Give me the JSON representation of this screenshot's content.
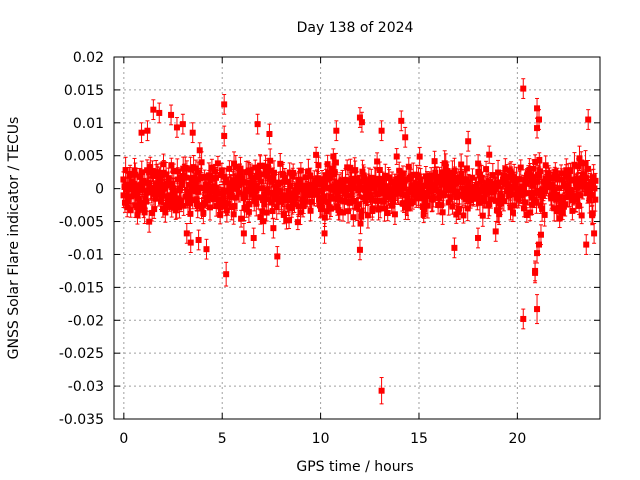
{
  "chart_data": {
    "type": "scatter",
    "title": "Day 138 of 2024",
    "xlabel": "GPS time / hours",
    "ylabel": "GNSS Solar Flare indicator / TECUs",
    "xlim": [
      -0.5,
      24.2
    ],
    "ylim": [
      -0.035,
      0.02
    ],
    "x_ticks": [
      0,
      5,
      10,
      15,
      20
    ],
    "x_tick_labels": [
      "0",
      "5",
      "10",
      "15",
      "20"
    ],
    "y_ticks": [
      0.02,
      0.015,
      0.01,
      0.005,
      0,
      -0.005,
      -0.01,
      -0.015,
      -0.02,
      -0.025,
      -0.03,
      -0.035
    ],
    "y_tick_labels": [
      "0.02",
      "0.015",
      "0.01",
      "0.005",
      "0",
      "-0.005",
      "-0.01",
      "-0.015",
      "-0.02",
      "-0.025",
      "-0.03",
      "-0.035"
    ],
    "grid": true,
    "marker": "square",
    "color": "#ff0000",
    "bulk_band": {
      "x_range": [
        0,
        24
      ],
      "step_hours": 0.05,
      "typical_abs_max": 0.006,
      "typical_error": 0.0015,
      "description": "dense cloud of points between about -0.006 and 0.006 TECU with error bars"
    },
    "notable_points": [
      {
        "x": 1.5,
        "y": 0.012,
        "err": 0.0015
      },
      {
        "x": 1.8,
        "y": 0.0115,
        "err": 0.0015
      },
      {
        "x": 0.9,
        "y": 0.0085,
        "err": 0.0015
      },
      {
        "x": 1.2,
        "y": 0.0088,
        "err": 0.0015
      },
      {
        "x": 2.4,
        "y": 0.0112,
        "err": 0.0015
      },
      {
        "x": 2.7,
        "y": 0.0093,
        "err": 0.0015
      },
      {
        "x": 3.0,
        "y": 0.0098,
        "err": 0.0015
      },
      {
        "x": 3.5,
        "y": 0.0085,
        "err": 0.0015
      },
      {
        "x": 5.1,
        "y": 0.0128,
        "err": 0.0015
      },
      {
        "x": 5.1,
        "y": 0.008,
        "err": 0.0015
      },
      {
        "x": 6.8,
        "y": 0.0098,
        "err": 0.0015
      },
      {
        "x": 7.4,
        "y": 0.0083,
        "err": 0.0015
      },
      {
        "x": 10.8,
        "y": 0.0088,
        "err": 0.0015
      },
      {
        "x": 12.0,
        "y": 0.0108,
        "err": 0.0015
      },
      {
        "x": 12.1,
        "y": 0.0101,
        "err": 0.0015
      },
      {
        "x": 13.1,
        "y": 0.0088,
        "err": 0.0015
      },
      {
        "x": 14.1,
        "y": 0.0103,
        "err": 0.0015
      },
      {
        "x": 14.3,
        "y": 0.0078,
        "err": 0.0015
      },
      {
        "x": 17.5,
        "y": 0.0072,
        "err": 0.0015
      },
      {
        "x": 20.3,
        "y": 0.0152,
        "err": 0.0015
      },
      {
        "x": 21.0,
        "y": 0.0122,
        "err": 0.0015
      },
      {
        "x": 21.1,
        "y": 0.0105,
        "err": 0.0015
      },
      {
        "x": 21.0,
        "y": 0.0092,
        "err": 0.0015
      },
      {
        "x": 23.6,
        "y": 0.0105,
        "err": 0.0015
      },
      {
        "x": 3.2,
        "y": -0.0068,
        "err": 0.0015
      },
      {
        "x": 3.4,
        "y": -0.0082,
        "err": 0.0015
      },
      {
        "x": 3.8,
        "y": -0.0078,
        "err": 0.0015
      },
      {
        "x": 4.2,
        "y": -0.0092,
        "err": 0.0015
      },
      {
        "x": 5.2,
        "y": -0.013,
        "err": 0.0018
      },
      {
        "x": 6.1,
        "y": -0.0068,
        "err": 0.0015
      },
      {
        "x": 6.6,
        "y": -0.0075,
        "err": 0.0015
      },
      {
        "x": 7.6,
        "y": -0.006,
        "err": 0.0015
      },
      {
        "x": 7.8,
        "y": -0.0103,
        "err": 0.0015
      },
      {
        "x": 10.2,
        "y": -0.0068,
        "err": 0.0015
      },
      {
        "x": 12.0,
        "y": -0.0093,
        "err": 0.0015
      },
      {
        "x": 13.1,
        "y": -0.0307,
        "err": 0.002
      },
      {
        "x": 16.8,
        "y": -0.009,
        "err": 0.0015
      },
      {
        "x": 18.0,
        "y": -0.0075,
        "err": 0.0015
      },
      {
        "x": 18.9,
        "y": -0.0065,
        "err": 0.0015
      },
      {
        "x": 20.3,
        "y": -0.0198,
        "err": 0.0015
      },
      {
        "x": 20.9,
        "y": -0.0125,
        "err": 0.0015
      },
      {
        "x": 20.9,
        "y": -0.0128,
        "err": 0.0015
      },
      {
        "x": 21.0,
        "y": -0.0098,
        "err": 0.0015
      },
      {
        "x": 21.1,
        "y": -0.0085,
        "err": 0.0015
      },
      {
        "x": 21.2,
        "y": -0.007,
        "err": 0.0015
      },
      {
        "x": 21.0,
        "y": -0.0183,
        "err": 0.0022
      },
      {
        "x": 23.5,
        "y": -0.0085,
        "err": 0.0015
      },
      {
        "x": 23.9,
        "y": -0.0068,
        "err": 0.0015
      }
    ]
  }
}
